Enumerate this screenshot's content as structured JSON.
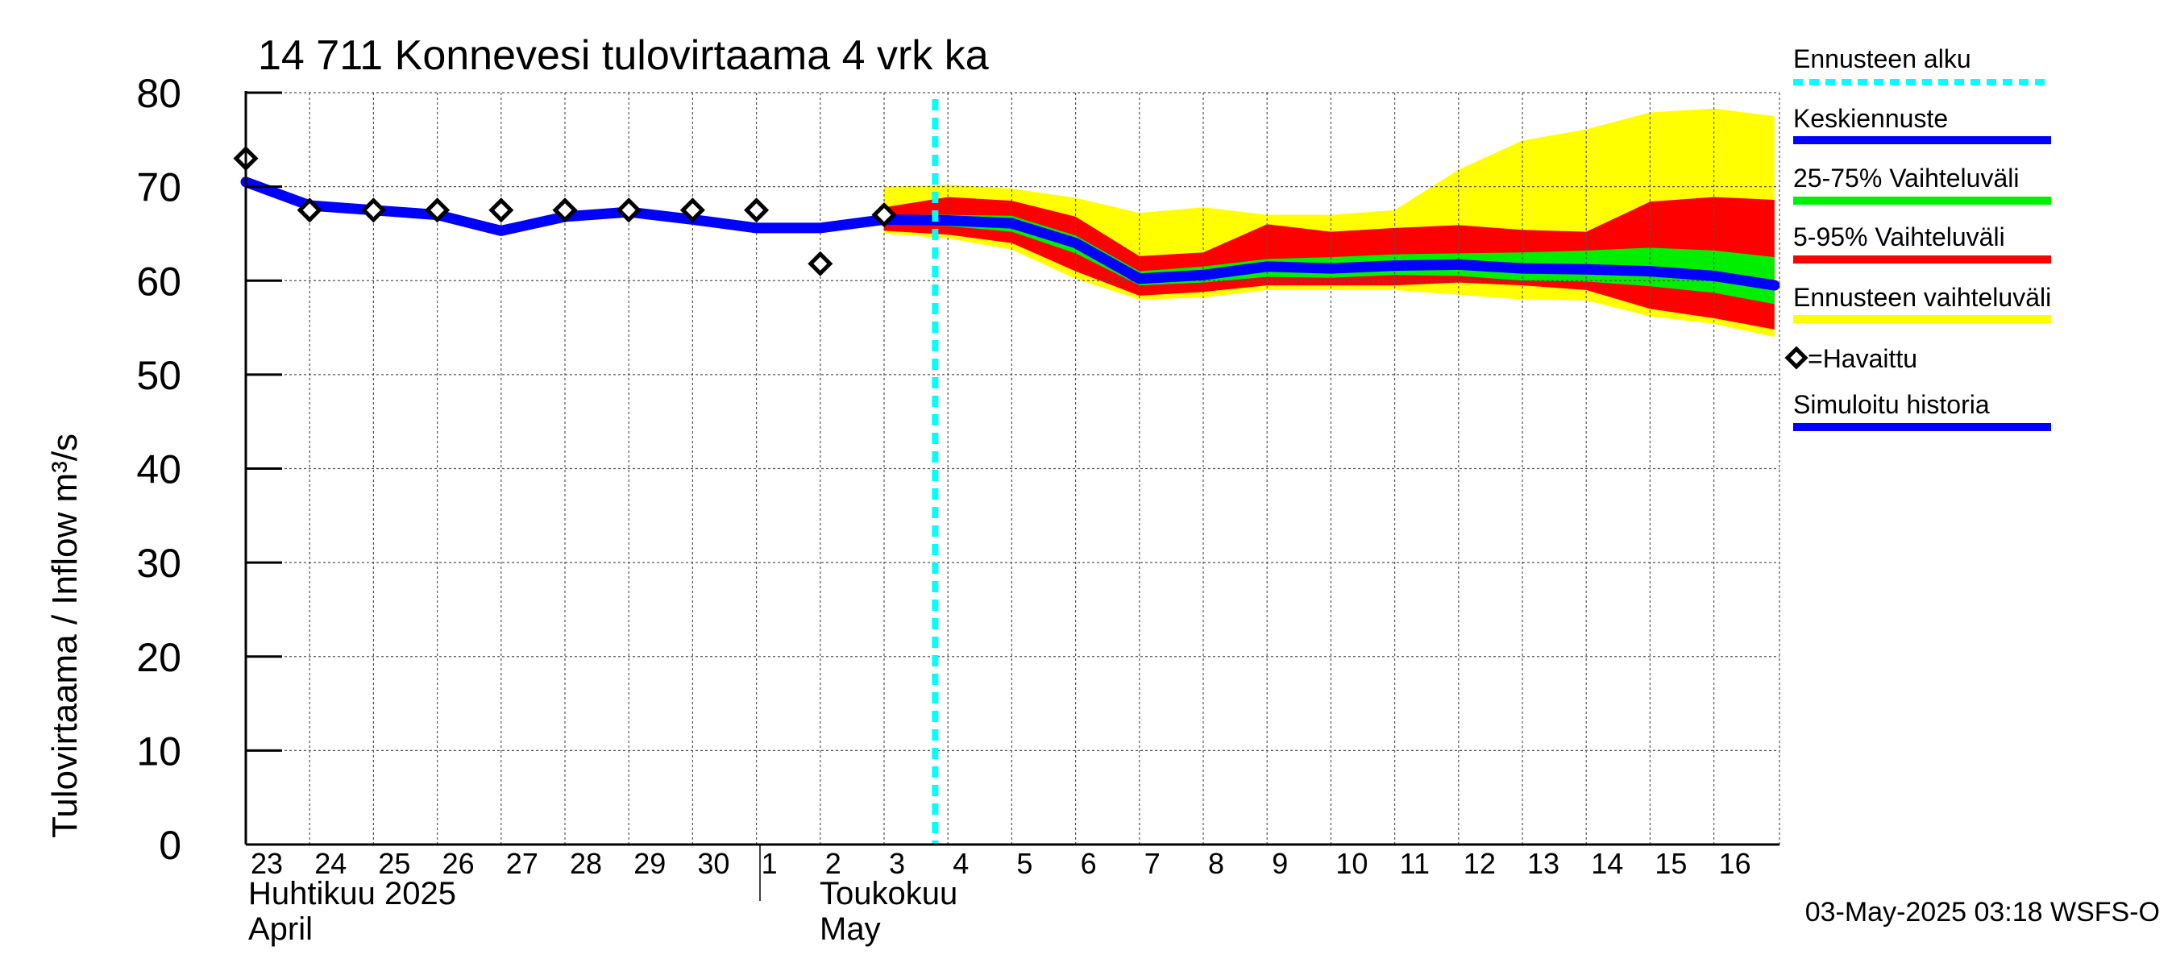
{
  "chart_data": {
    "type": "area",
    "title": "14 711 Konnevesi tulovirtaama 4 vrk ka",
    "ylabel": "Tulovirtaama / Inflow    m³/s",
    "ylim": [
      0,
      80
    ],
    "yticks": [
      "0",
      "10",
      "20",
      "30",
      "40",
      "50",
      "60",
      "70",
      "80"
    ],
    "x_labels": [
      "23",
      "24",
      "25",
      "26",
      "27",
      "28",
      "29",
      "30",
      "1",
      "2",
      "3",
      "4",
      "5",
      "6",
      "7",
      "8",
      "9",
      "10",
      "11",
      "12",
      "13",
      "14",
      "15",
      "16"
    ],
    "month_labels": {
      "april_fi": "Huhtikuu  2025",
      "april_en": "April",
      "may_fi": "Toukokuu",
      "may_en": "May"
    },
    "grid": true,
    "legend_position": "right",
    "forecast_start_x": 10.8,
    "x": [
      0,
      1,
      2,
      3,
      4,
      5,
      6,
      7,
      8,
      9,
      10,
      11,
      12,
      13,
      14,
      15,
      16,
      17,
      18,
      19,
      20,
      21,
      22,
      23,
      23.95
    ],
    "series": [
      {
        "name": "Simuloitu historia",
        "color": "#0000ff",
        "points": [
          [
            0,
            70.5
          ],
          [
            1,
            68
          ],
          [
            2,
            67.5
          ],
          [
            3,
            67
          ],
          [
            4,
            65.3
          ],
          [
            5,
            66.8
          ],
          [
            6,
            67.3
          ],
          [
            7,
            66.5
          ],
          [
            8,
            65.6
          ],
          [
            9,
            65.6
          ],
          [
            10,
            66.5
          ]
        ]
      },
      {
        "name": "Keskiennuste",
        "color": "#0000ff",
        "points": [
          [
            10,
            66.5
          ],
          [
            11,
            66.4
          ],
          [
            12,
            66.1
          ],
          [
            13,
            64.0
          ],
          [
            14,
            60.2
          ],
          [
            15,
            60.6
          ],
          [
            16,
            61.5
          ],
          [
            17,
            61.3
          ],
          [
            18,
            61.6
          ],
          [
            19,
            61.7
          ],
          [
            20,
            61.3
          ],
          [
            21,
            61.2
          ],
          [
            22,
            61.0
          ],
          [
            23,
            60.5
          ],
          [
            23.95,
            59.5
          ]
        ]
      }
    ],
    "bands": [
      {
        "name": "Ennusteen vaihteluväli",
        "color": "#ffff00",
        "x": [
          10,
          11,
          12,
          13,
          14,
          15,
          16,
          17,
          18,
          19,
          20,
          21,
          22,
          23,
          23.95
        ],
        "upper": [
          70.0,
          70.2,
          69.8,
          68.8,
          67.2,
          67.8,
          67.0,
          67.0,
          67.5,
          71.8,
          74.9,
          76.1,
          77.9,
          78.3,
          77.5
        ],
        "lower": [
          65.0,
          64.5,
          63.3,
          60.2,
          58.0,
          58.2,
          59.0,
          59.0,
          59.0,
          58.5,
          58.0,
          57.9,
          56.2,
          55.4,
          54.0
        ]
      },
      {
        "name": "5-95% Vaihteluväli",
        "color": "#ff0000",
        "x": [
          10,
          11,
          12,
          13,
          14,
          15,
          16,
          17,
          18,
          19,
          20,
          21,
          22,
          23,
          23.95
        ],
        "upper": [
          67.8,
          68.9,
          68.5,
          66.8,
          62.6,
          63.0,
          66.0,
          65.2,
          65.6,
          65.9,
          65.4,
          65.2,
          68.4,
          68.9,
          68.6
        ],
        "lower": [
          65.3,
          64.9,
          64.0,
          61.0,
          58.4,
          58.8,
          59.5,
          59.5,
          59.5,
          59.8,
          59.5,
          59.0,
          57.0,
          56.0,
          54.8
        ]
      },
      {
        "name": "25-75% Vaihteluväli",
        "color": "#00ee00",
        "x": [
          10,
          11,
          12,
          13,
          14,
          15,
          16,
          17,
          18,
          19,
          20,
          21,
          22,
          23,
          23.95
        ],
        "upper": [
          67.0,
          67.0,
          66.9,
          64.8,
          61.0,
          61.5,
          62.3,
          62.5,
          62.8,
          62.9,
          63.0,
          63.2,
          63.5,
          63.2,
          62.5
        ],
        "lower": [
          66.0,
          65.8,
          65.2,
          62.9,
          59.5,
          59.8,
          60.4,
          60.3,
          60.6,
          60.5,
          60.0,
          59.9,
          59.4,
          58.7,
          57.5
        ]
      }
    ],
    "observed": {
      "name": "=Havaittu",
      "points": [
        [
          0,
          73
        ],
        [
          1,
          67.5
        ],
        [
          2,
          67.5
        ],
        [
          3,
          67.5
        ],
        [
          4,
          67.5
        ],
        [
          5,
          67.5
        ],
        [
          6,
          67.5
        ],
        [
          7,
          67.5
        ],
        [
          8,
          67.5
        ],
        [
          9,
          61.8
        ],
        [
          10,
          67
        ]
      ]
    },
    "legend": [
      {
        "label": "Ennusteen alku",
        "color": "#00ffff",
        "style": "dashed"
      },
      {
        "label": "Keskiennuste",
        "color": "#0000ff",
        "style": "line"
      },
      {
        "label": "25-75% Vaihteluväli",
        "color": "#00ee00",
        "style": "line"
      },
      {
        "label": "5-95% Vaihteluväli",
        "color": "#ff0000",
        "style": "line"
      },
      {
        "label": "Ennusteen vaihteluväli",
        "color": "#ffff00",
        "style": "line"
      },
      {
        "label": "=Havaittu",
        "color": "#000000",
        "style": "diamond"
      },
      {
        "label": "Simuloitu historia",
        "color": "#0000ff",
        "style": "line"
      }
    ],
    "timestamp": "03-May-2025 03:18 WSFS-O"
  }
}
